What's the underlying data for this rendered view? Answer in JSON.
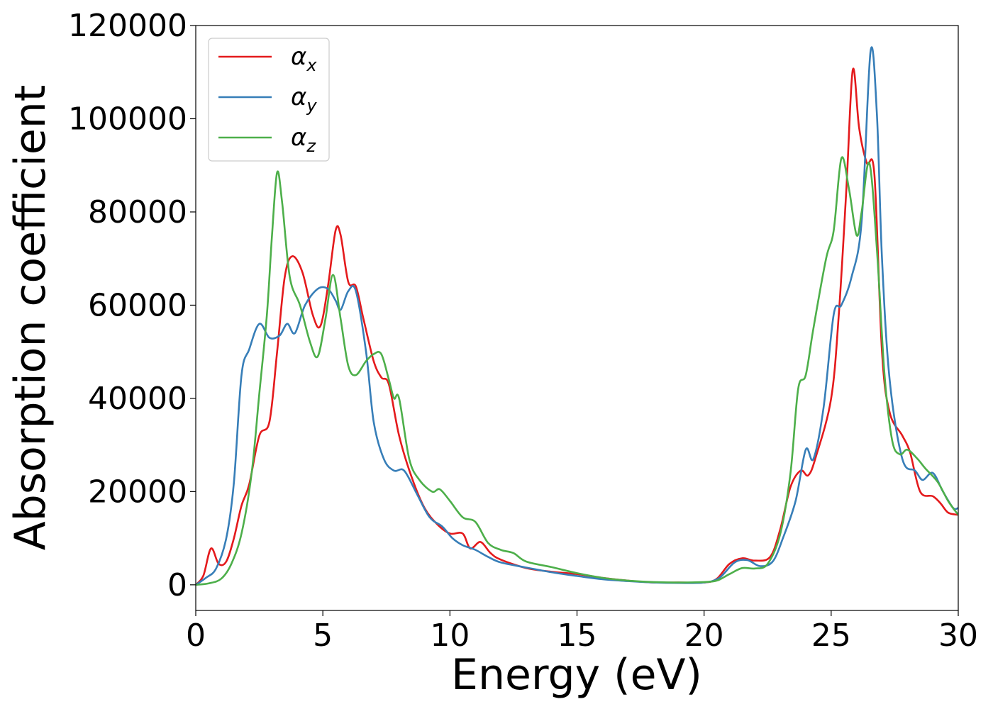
{
  "chart_data": {
    "type": "line",
    "xlabel": "Energy (eV)",
    "ylabel": "Absorption coefficient",
    "xlim": [
      0,
      30
    ],
    "ylim": [
      -5500,
      120000
    ],
    "xticks": [
      "0",
      "5",
      "10",
      "15",
      "20",
      "25",
      "30"
    ],
    "yticks": [
      "0",
      "20000",
      "40000",
      "60000",
      "80000",
      "100000",
      "120000"
    ],
    "grid": false,
    "legend": "top-left",
    "series": [
      {
        "name": "αx",
        "base": "α",
        "sub": "x",
        "color": "#e41a1c",
        "points": [
          [
            0,
            0
          ],
          [
            0.3,
            2000
          ],
          [
            0.6,
            7800
          ],
          [
            0.9,
            4500
          ],
          [
            1.2,
            5000
          ],
          [
            1.5,
            10000
          ],
          [
            1.8,
            17000
          ],
          [
            2.1,
            21500
          ],
          [
            2.5,
            32000
          ],
          [
            2.9,
            35000
          ],
          [
            3.2,
            50000
          ],
          [
            3.5,
            66000
          ],
          [
            3.8,
            70500
          ],
          [
            4.2,
            67000
          ],
          [
            4.6,
            58000
          ],
          [
            4.9,
            55500
          ],
          [
            5.2,
            64000
          ],
          [
            5.5,
            76000
          ],
          [
            5.7,
            75000
          ],
          [
            6.0,
            65000
          ],
          [
            6.3,
            64000
          ],
          [
            6.6,
            57000
          ],
          [
            7.0,
            48000
          ],
          [
            7.3,
            44500
          ],
          [
            7.6,
            43000
          ],
          [
            8.0,
            32000
          ],
          [
            8.5,
            23000
          ],
          [
            9.0,
            16500
          ],
          [
            9.5,
            13000
          ],
          [
            10.0,
            11000
          ],
          [
            10.5,
            11000
          ],
          [
            10.8,
            7800
          ],
          [
            11.2,
            9200
          ],
          [
            11.6,
            6800
          ],
          [
            12.0,
            5400
          ],
          [
            13.0,
            3600
          ],
          [
            14.0,
            2800
          ],
          [
            15.0,
            2300
          ],
          [
            16.0,
            1500
          ],
          [
            17.0,
            900
          ],
          [
            18.0,
            500
          ],
          [
            19.0,
            500
          ],
          [
            20.0,
            500
          ],
          [
            20.5,
            1300
          ],
          [
            21.0,
            4500
          ],
          [
            21.5,
            5700
          ],
          [
            22.0,
            5200
          ],
          [
            22.6,
            6000
          ],
          [
            23.0,
            12000
          ],
          [
            23.4,
            21000
          ],
          [
            23.8,
            24500
          ],
          [
            24.1,
            23500
          ],
          [
            24.4,
            27500
          ],
          [
            25.0,
            40000
          ],
          [
            25.3,
            58000
          ],
          [
            25.6,
            85000
          ],
          [
            25.85,
            110500
          ],
          [
            26.1,
            98000
          ],
          [
            26.4,
            90500
          ],
          [
            26.7,
            88000
          ],
          [
            27.0,
            50000
          ],
          [
            27.3,
            37000
          ],
          [
            27.8,
            32000
          ],
          [
            28.1,
            28500
          ],
          [
            28.5,
            20000
          ],
          [
            29.0,
            19000
          ],
          [
            29.3,
            17500
          ],
          [
            29.6,
            15500
          ],
          [
            30.0,
            15000
          ]
        ]
      },
      {
        "name": "αy",
        "base": "α",
        "sub": "y",
        "color": "#377eb8",
        "points": [
          [
            0,
            0
          ],
          [
            0.4,
            1500
          ],
          [
            0.8,
            3500
          ],
          [
            1.2,
            10000
          ],
          [
            1.5,
            22000
          ],
          [
            1.8,
            45000
          ],
          [
            2.1,
            50500
          ],
          [
            2.5,
            56000
          ],
          [
            2.9,
            53000
          ],
          [
            3.3,
            53500
          ],
          [
            3.6,
            56000
          ],
          [
            3.9,
            54000
          ],
          [
            4.3,
            60000
          ],
          [
            4.8,
            63500
          ],
          [
            5.2,
            63500
          ],
          [
            5.5,
            61000
          ],
          [
            5.7,
            59000
          ],
          [
            6.0,
            63000
          ],
          [
            6.3,
            63000
          ],
          [
            6.7,
            50000
          ],
          [
            7.0,
            35000
          ],
          [
            7.4,
            27000
          ],
          [
            7.8,
            24500
          ],
          [
            8.2,
            24500
          ],
          [
            8.7,
            19500
          ],
          [
            9.2,
            14500
          ],
          [
            9.7,
            12500
          ],
          [
            10.1,
            10000
          ],
          [
            10.5,
            8500
          ],
          [
            11.0,
            7500
          ],
          [
            11.5,
            6000
          ],
          [
            12.0,
            4800
          ],
          [
            13.0,
            3700
          ],
          [
            14.0,
            2700
          ],
          [
            15.0,
            1900
          ],
          [
            16.0,
            1200
          ],
          [
            17.0,
            800
          ],
          [
            18.0,
            500
          ],
          [
            19.0,
            400
          ],
          [
            20.0,
            500
          ],
          [
            20.6,
            1500
          ],
          [
            21.2,
            4800
          ],
          [
            21.7,
            5300
          ],
          [
            22.2,
            4000
          ],
          [
            22.7,
            5000
          ],
          [
            23.1,
            10000
          ],
          [
            23.6,
            18000
          ],
          [
            24.0,
            29000
          ],
          [
            24.3,
            27000
          ],
          [
            24.7,
            38000
          ],
          [
            25.1,
            58000
          ],
          [
            25.4,
            60000
          ],
          [
            25.8,
            66000
          ],
          [
            26.2,
            78000
          ],
          [
            26.55,
            114500
          ],
          [
            26.8,
            101000
          ],
          [
            27.0,
            70000
          ],
          [
            27.3,
            44000
          ],
          [
            27.8,
            27000
          ],
          [
            28.3,
            24500
          ],
          [
            28.6,
            22500
          ],
          [
            29.0,
            24000
          ],
          [
            29.4,
            20000
          ],
          [
            29.8,
            16500
          ],
          [
            30.0,
            16500
          ]
        ]
      },
      {
        "name": "αz",
        "base": "α",
        "sub": "z",
        "color": "#4daf4a",
        "points": [
          [
            0,
            0
          ],
          [
            0.5,
            300
          ],
          [
            1.0,
            1300
          ],
          [
            1.4,
            4500
          ],
          [
            1.8,
            11000
          ],
          [
            2.2,
            24000
          ],
          [
            2.5,
            41000
          ],
          [
            2.8,
            58000
          ],
          [
            3.0,
            75000
          ],
          [
            3.2,
            88500
          ],
          [
            3.4,
            82000
          ],
          [
            3.7,
            66000
          ],
          [
            4.1,
            60000
          ],
          [
            4.5,
            52000
          ],
          [
            4.8,
            49000
          ],
          [
            5.1,
            57000
          ],
          [
            5.4,
            66500
          ],
          [
            5.7,
            57000
          ],
          [
            6.0,
            47000
          ],
          [
            6.3,
            45000
          ],
          [
            6.7,
            48000
          ],
          [
            7.0,
            49500
          ],
          [
            7.3,
            49500
          ],
          [
            7.6,
            44000
          ],
          [
            7.8,
            40000
          ],
          [
            8.0,
            40000
          ],
          [
            8.4,
            27000
          ],
          [
            8.8,
            22500
          ],
          [
            9.3,
            20000
          ],
          [
            9.6,
            20500
          ],
          [
            10.0,
            18000
          ],
          [
            10.5,
            14500
          ],
          [
            11.0,
            13500
          ],
          [
            11.5,
            9000
          ],
          [
            12.0,
            7500
          ],
          [
            12.5,
            6800
          ],
          [
            13.0,
            5000
          ],
          [
            14.0,
            3800
          ],
          [
            15.0,
            2500
          ],
          [
            16.0,
            1500
          ],
          [
            17.0,
            900
          ],
          [
            18.0,
            600
          ],
          [
            19.0,
            500
          ],
          [
            20.0,
            600
          ],
          [
            20.5,
            900
          ],
          [
            21.0,
            2300
          ],
          [
            21.5,
            3600
          ],
          [
            22.0,
            3500
          ],
          [
            22.5,
            4500
          ],
          [
            23.0,
            11000
          ],
          [
            23.4,
            24000
          ],
          [
            23.7,
            42000
          ],
          [
            24.0,
            45000
          ],
          [
            24.3,
            55000
          ],
          [
            24.8,
            70000
          ],
          [
            25.1,
            76000
          ],
          [
            25.4,
            91500
          ],
          [
            25.7,
            85000
          ],
          [
            26.0,
            75000
          ],
          [
            26.2,
            80000
          ],
          [
            26.5,
            90500
          ],
          [
            26.8,
            72000
          ],
          [
            27.1,
            45000
          ],
          [
            27.4,
            31000
          ],
          [
            27.7,
            28000
          ],
          [
            28.0,
            29000
          ],
          [
            28.4,
            27000
          ],
          [
            28.7,
            25000
          ],
          [
            29.2,
            22000
          ],
          [
            29.6,
            18000
          ],
          [
            30.0,
            15000
          ]
        ]
      }
    ]
  }
}
